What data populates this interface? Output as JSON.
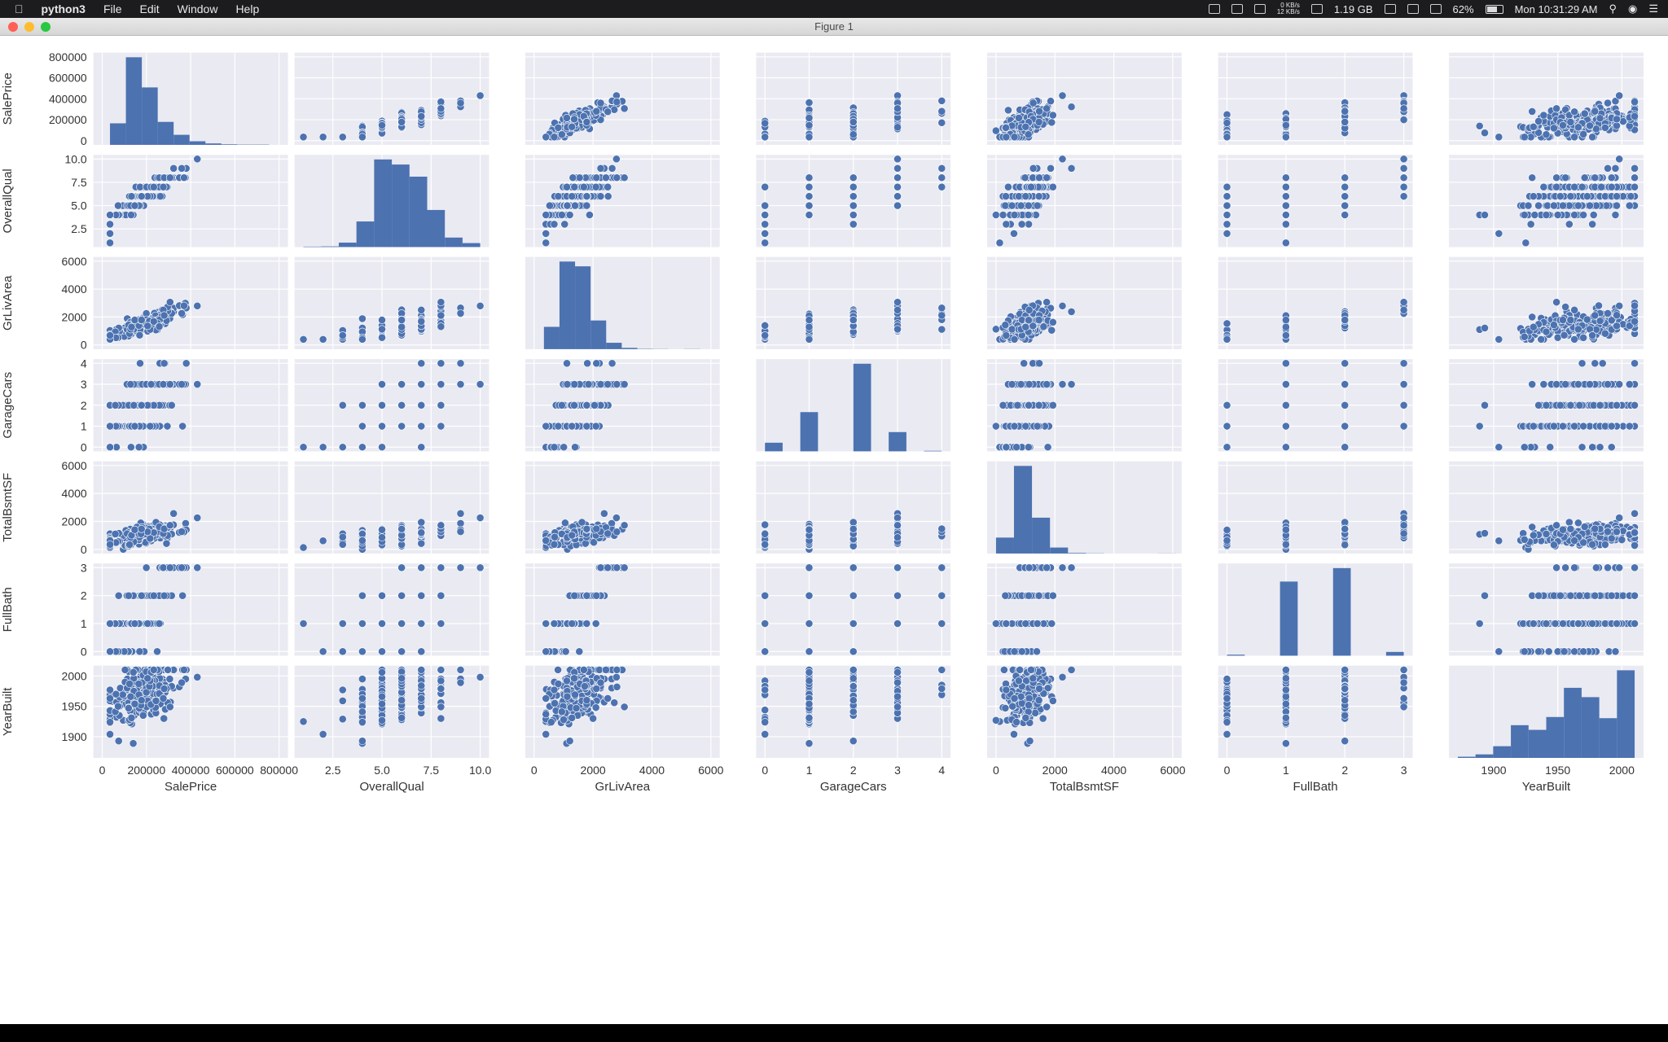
{
  "menubar": {
    "apple_icon": "apple-icon",
    "app_name": "python3",
    "menus": [
      "File",
      "Edit",
      "Window",
      "Help"
    ],
    "net_up": "0 KB/s",
    "net_down": "12 KB/s",
    "memory": "1.19 GB",
    "battery": "62%",
    "clock": "Mon 10:31:29 AM"
  },
  "window": {
    "title": "Figure 1"
  },
  "colors": {
    "point": "#4c72b0",
    "panel_bg": "#eaeaf2",
    "grid": "#ffffff",
    "text": "#333333"
  },
  "chart_data": {
    "type": "scatter",
    "layout": "pairplot",
    "variables": [
      "SalePrice",
      "OverallQual",
      "GrLivArea",
      "GarageCars",
      "TotalBsmtSF",
      "FullBath",
      "YearBuilt"
    ],
    "axes": {
      "SalePrice": {
        "range": [
          0,
          800000
        ],
        "ticks": [
          0,
          200000,
          400000,
          600000,
          800000
        ],
        "labels": [
          "0",
          "200000",
          "400000",
          "600000",
          "800000"
        ]
      },
      "OverallQual": {
        "range": [
          1,
          10
        ],
        "ticks": [
          2.5,
          5,
          7.5,
          10
        ],
        "labels": [
          "2.5",
          "5.0",
          "7.5",
          "10.0"
        ]
      },
      "GrLivArea": {
        "range": [
          0,
          6000
        ],
        "ticks": [
          0,
          2000,
          4000,
          6000
        ],
        "labels": [
          "0",
          "2000",
          "4000",
          "6000"
        ]
      },
      "GarageCars": {
        "range": [
          0,
          4
        ],
        "ticks": [
          0,
          1,
          2,
          3,
          4
        ],
        "labels": [
          "0",
          "1",
          "2",
          "3",
          "4"
        ]
      },
      "TotalBsmtSF": {
        "range": [
          0,
          6000
        ],
        "ticks": [
          0,
          2000,
          4000,
          6000
        ],
        "labels": [
          "0",
          "2000",
          "4000",
          "6000"
        ]
      },
      "FullBath": {
        "range": [
          0,
          3
        ],
        "ticks": [
          0,
          1,
          2,
          3
        ],
        "labels": [
          "0",
          "1",
          "2",
          "3"
        ]
      },
      "YearBuilt": {
        "range": [
          1872,
          2010
        ],
        "ticks": [
          1900,
          1950,
          2000
        ],
        "labels": [
          "1900",
          "1950",
          "2000"
        ]
      }
    },
    "histograms": {
      "SalePrice": {
        "edges": [
          35000,
          107000,
          179000,
          251000,
          323000,
          395000,
          467000,
          539000,
          611000,
          683000,
          755000
        ],
        "counts": [
          150,
          610,
          400,
          160,
          70,
          25,
          10,
          4,
          2,
          2
        ]
      },
      "OverallQual": {
        "edges": [
          1,
          1.9,
          2.8,
          3.7,
          4.6,
          5.5,
          6.4,
          7.3,
          8.2,
          9.1,
          10
        ],
        "counts": [
          2,
          3,
          20,
          116,
          397,
          374,
          319,
          168,
          43,
          18
        ]
      },
      "GrLivArea": {
        "edges": [
          334,
          862,
          1390,
          1918,
          2446,
          2974,
          3502,
          4030,
          4558,
          5086,
          5642
        ],
        "counts": [
          140,
          550,
          520,
          180,
          40,
          8,
          2,
          1,
          0,
          1
        ]
      },
      "GarageCars": {
        "edges": [
          0,
          0.4,
          0.8,
          1.2,
          1.6,
          2.0,
          2.4,
          2.8,
          3.2,
          3.6,
          4.0
        ],
        "counts": [
          81,
          0,
          369,
          0,
          0,
          824,
          0,
          181,
          0,
          5
        ]
      },
      "TotalBsmtSF": {
        "edges": [
          0,
          611,
          1222,
          1833,
          2444,
          3055,
          3666,
          4277,
          4888,
          5499,
          6110
        ],
        "counts": [
          160,
          880,
          360,
          60,
          6,
          2,
          0,
          0,
          0,
          1
        ]
      },
      "FullBath": {
        "edges": [
          0,
          0.3,
          0.6,
          0.9,
          1.2,
          1.5,
          1.8,
          2.1,
          2.4,
          2.7,
          3.0
        ],
        "counts": [
          9,
          0,
          0,
          650,
          0,
          0,
          768,
          0,
          0,
          33
        ]
      },
      "YearBuilt": {
        "edges": [
          1872,
          1885.8,
          1899.6,
          1913.4,
          1927.2,
          1941,
          1954.8,
          1968.6,
          1982.4,
          1996.2,
          2010
        ],
        "counts": [
          5,
          15,
          50,
          140,
          120,
          175,
          300,
          260,
          170,
          375
        ]
      }
    }
  }
}
